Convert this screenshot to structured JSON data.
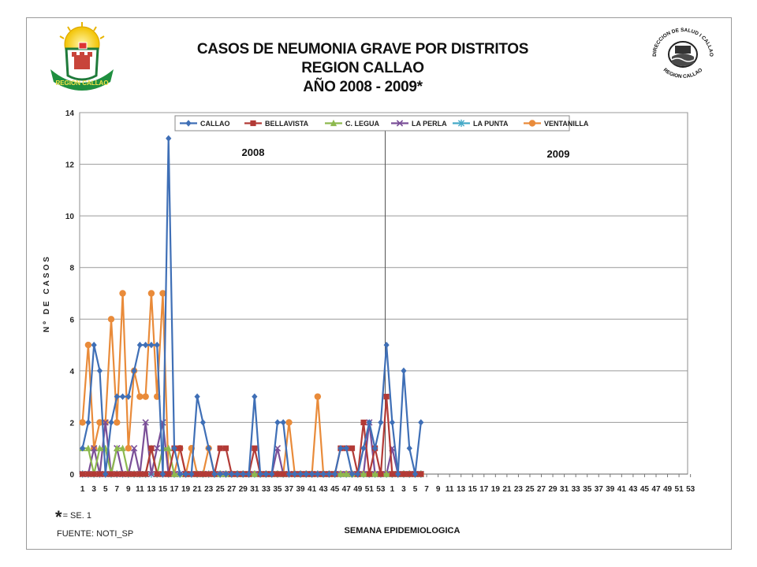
{
  "header": {
    "title_line1": "CASOS DE NEUMONIA GRAVE POR DISTRITOS",
    "title_line2": "REGION  CALLAO",
    "title_line3": "AÑO 2008 - 2009*"
  },
  "logos": {
    "left": {
      "icon": "region-callao-crest-icon",
      "text": "REGION CALLAO"
    },
    "right": {
      "icon": "direccion-salud-callao-seal-icon",
      "text_top": "DIRECCION DE SALUD I CALLAO",
      "text_bottom": "REGION CALLAO"
    }
  },
  "notes": {
    "asterisk": "*",
    "asterisk_text": "= SE. 1",
    "source": "FUENTE: NOTI_SP"
  },
  "chart_data": {
    "type": "line",
    "title": "",
    "xlabel": "SEMANA EPIDEMIOLOGICA",
    "ylabel": "Nº DE CASOS",
    "ylim": [
      0,
      14
    ],
    "yticks": [
      0,
      2,
      4,
      6,
      8,
      10,
      12,
      14
    ],
    "grid": "horizontal",
    "legend_position": "top",
    "year_labels": [
      "2008",
      "2009"
    ],
    "year_divider_after_week": 53,
    "xtick_labels": [
      "1",
      "3",
      "5",
      "7",
      "9",
      "11",
      "13",
      "15",
      "17",
      "19",
      "21",
      "23",
      "25",
      "27",
      "29",
      "31",
      "33",
      "35",
      "37",
      "39",
      "41",
      "43",
      "45",
      "47",
      "49",
      "51",
      "53",
      "1",
      "3",
      "5",
      "7",
      "9",
      "11",
      "13",
      "15",
      "17",
      "19",
      "21",
      "23",
      "25",
      "27",
      "29",
      "31",
      "33",
      "35",
      "37",
      "39",
      "41",
      "43",
      "45",
      "47",
      "49",
      "51",
      "53"
    ],
    "x_weeks_total": 106,
    "series": [
      {
        "name": "CALLAO",
        "color": "#3f6fb6",
        "marker": "diamond",
        "values": [
          1,
          2,
          5,
          4,
          0,
          2,
          3,
          3,
          3,
          4,
          5,
          5,
          5,
          5,
          0,
          13,
          1,
          0,
          0,
          0,
          3,
          2,
          1,
          0,
          0,
          0,
          0,
          0,
          0,
          0,
          3,
          0,
          0,
          0,
          2,
          2,
          0,
          0,
          0,
          0,
          0,
          0,
          0,
          0,
          0,
          1,
          1,
          0,
          0,
          1,
          2,
          1,
          2,
          5,
          2,
          0,
          4,
          1,
          0,
          2
        ]
      },
      {
        "name": "BELLAVISTA",
        "color": "#b23a36",
        "marker": "square",
        "values": [
          0,
          0,
          0,
          0,
          0,
          0,
          0,
          0,
          0,
          0,
          0,
          0,
          1,
          0,
          0,
          0,
          1,
          1,
          0,
          0,
          0,
          0,
          0,
          0,
          1,
          1,
          0,
          0,
          0,
          0,
          1,
          0,
          0,
          0,
          0,
          0,
          0,
          0,
          0,
          0,
          0,
          0,
          0,
          0,
          0,
          1,
          1,
          1,
          0,
          2,
          0,
          1,
          0,
          3,
          0,
          0,
          0,
          0,
          0,
          0
        ]
      },
      {
        "name": "C. LEGUA",
        "color": "#8db94e",
        "marker": "triangle",
        "values": [
          1,
          1,
          0,
          1,
          1,
          0,
          1,
          1,
          0,
          0,
          0,
          0,
          1,
          0,
          1,
          1,
          0,
          0,
          0,
          0,
          0,
          0,
          0,
          0,
          0,
          0,
          0,
          0,
          0,
          0,
          0,
          0,
          0,
          0,
          0,
          0,
          0,
          0,
          0,
          0,
          0,
          0,
          0,
          0,
          0,
          0,
          0,
          0,
          0,
          0,
          0,
          0,
          0,
          0,
          0,
          0,
          0,
          0,
          0,
          0
        ]
      },
      {
        "name": "LA PERLA",
        "color": "#7a4f98",
        "marker": "cross",
        "values": [
          0,
          0,
          1,
          0,
          2,
          0,
          1,
          0,
          0,
          1,
          0,
          2,
          0,
          1,
          2,
          0,
          0,
          0,
          0,
          0,
          0,
          0,
          0,
          0,
          0,
          0,
          0,
          0,
          0,
          0,
          0,
          0,
          0,
          0,
          1,
          0,
          0,
          0,
          0,
          0,
          0,
          0,
          0,
          0,
          0,
          0,
          0,
          0,
          0,
          0,
          2,
          0,
          0,
          0,
          1,
          0,
          0,
          0,
          0,
          0
        ]
      },
      {
        "name": "LA PUNTA",
        "color": "#44a9c7",
        "marker": "star",
        "values": [
          0,
          0,
          0,
          0,
          0,
          0,
          0,
          0,
          0,
          0,
          0,
          0,
          0,
          0,
          0,
          0,
          0,
          0,
          0,
          0,
          0,
          0,
          0,
          0,
          0,
          0,
          0,
          0,
          0,
          0,
          0,
          0,
          0,
          0,
          0,
          0,
          0,
          0,
          0,
          0,
          0,
          0,
          0,
          0,
          0,
          0,
          0,
          0,
          0,
          0,
          0,
          0,
          0,
          0,
          0,
          0,
          0,
          0,
          0,
          0
        ]
      },
      {
        "name": "VENTANILLA",
        "color": "#e98b3a",
        "marker": "circle",
        "values": [
          2,
          5,
          1,
          2,
          2,
          6,
          2,
          7,
          1,
          4,
          3,
          3,
          7,
          3,
          7,
          0,
          0,
          1,
          0,
          1,
          0,
          0,
          1,
          0,
          0,
          0,
          0,
          0,
          0,
          0,
          0,
          0,
          0,
          0,
          0,
          0,
          2,
          0,
          0,
          0,
          0,
          3,
          0,
          0,
          0,
          0,
          0,
          0,
          0,
          0,
          0,
          0,
          0,
          0,
          0,
          0,
          0,
          0,
          0,
          0
        ]
      }
    ],
    "series_note": "values indexed by consecutive 2008 epidemiological weeks starting at week 1; points beyond week 53 continue into 2009 (weeks 1..)"
  }
}
